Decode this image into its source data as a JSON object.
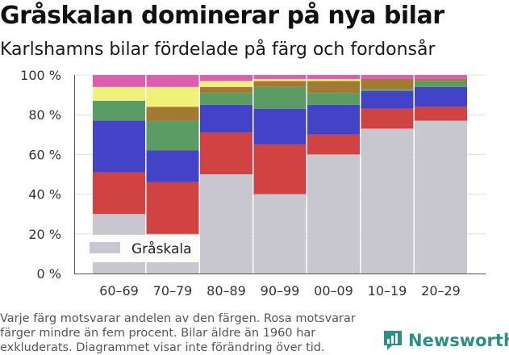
{
  "title": "Gråskalan dominerar på nya bilar",
  "subtitle": "Karlshamns bilar fördelade på färg och fordonsår",
  "footnote": "Varje färg motsvarar andelen av den färgen. Rosa motsvarar färger mindre än fem procent. Bilar äldre än 1960 har exkluderats. Diagrammet visar inte förändring över tid.",
  "brand": "Newsworthy",
  "legend_label": "Gråskala",
  "colors": {
    "gray": "#c8c6cf",
    "red": "#d14343",
    "blue": "#4343c8",
    "green": "#5b9b64",
    "brown": "#a27a33",
    "yellow": "#eef27a",
    "pink": "#da5fb0",
    "brand": "#2a8f86",
    "grid": "#e0e0e0"
  },
  "chart_data": {
    "type": "bar",
    "stacked": true,
    "categories": [
      "60–69",
      "70–79",
      "80–89",
      "90–99",
      "00–09",
      "10–19",
      "20–29"
    ],
    "ylim": [
      0,
      100
    ],
    "yticks": [
      "0 %",
      "20 %",
      "40 %",
      "60 %",
      "80 %",
      "100 %"
    ],
    "series": [
      {
        "name": "Gråskala",
        "color": "gray",
        "values": [
          30,
          20,
          50,
          40,
          60,
          73,
          77
        ]
      },
      {
        "color": "red",
        "values": [
          21,
          26,
          21,
          25,
          10,
          10,
          7
        ]
      },
      {
        "color": "blue",
        "values": [
          26,
          16,
          14,
          18,
          15,
          9,
          10
        ]
      },
      {
        "color": "green",
        "values": [
          10,
          15,
          6,
          11,
          6,
          1,
          3
        ]
      },
      {
        "color": "brown",
        "values": [
          0,
          7,
          3,
          3,
          6,
          5,
          1
        ]
      },
      {
        "color": "yellow",
        "values": [
          7,
          10,
          3,
          1,
          1,
          0,
          0
        ]
      },
      {
        "color": "pink",
        "values": [
          6,
          6,
          3,
          2,
          2,
          2,
          2
        ]
      }
    ],
    "legend": {
      "position": "bottom-left"
    },
    "grid": true
  }
}
